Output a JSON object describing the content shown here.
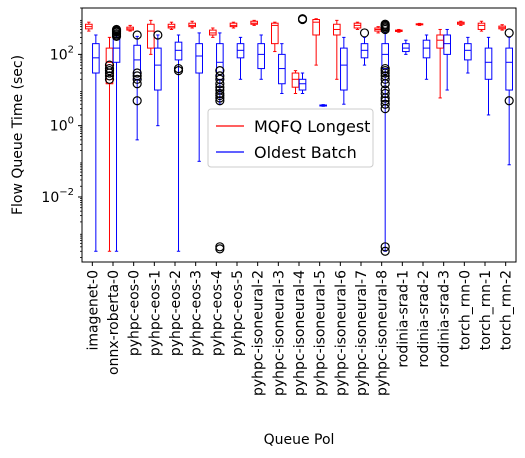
{
  "chart_data": {
    "type": "boxplot",
    "title": "",
    "xlabel": "Queue Pol",
    "ylabel": "Flow Queue Time (sec)",
    "yscale": "log",
    "ylim": [
      0.00015,
      2000
    ],
    "yticks": [
      {
        "value": 0.01,
        "base": "10",
        "exp": "−2"
      },
      {
        "value": 1,
        "base": "10",
        "exp": "0"
      },
      {
        "value": 100,
        "base": "10",
        "exp": "2"
      }
    ],
    "grid": false,
    "legend_position": "center",
    "categories": [
      "imagenet-0",
      "onnx-roberta-0",
      "pyhpc-eos-0",
      "pyhpc-eos-1",
      "pyhpc-eos-2",
      "pyhpc-eos-3",
      "pyhpc-eos-4",
      "pyhpc-eos-5",
      "pyhpc-isoneural-2",
      "pyhpc-isoneural-3",
      "pyhpc-isoneural-4",
      "pyhpc-isoneural-5",
      "pyhpc-isoneural-6",
      "pyhpc-isoneural-7",
      "pyhpc-isoneural-8",
      "rodinia-srad-1",
      "rodinia-srad-2",
      "rodinia-srad-3",
      "torch_rnn-0",
      "torch_rnn-1",
      "torch_rnn-2"
    ],
    "series": [
      {
        "name": "MQFQ Longest",
        "color": "#ff0000",
        "boxes": [
          {
            "whislo": 450,
            "q1": 520,
            "med": 600,
            "q3": 700,
            "whishi": 800,
            "fliers": []
          },
          {
            "whislo": 0.0003,
            "q1": 15,
            "med": 60,
            "q3": 150,
            "whishi": 300,
            "fliers": [
              20,
              25,
              30,
              35,
              40,
              50
            ]
          },
          {
            "whislo": 450,
            "q1": 480,
            "med": 520,
            "q3": 580,
            "whishi": 650,
            "fliers": []
          },
          {
            "whislo": 100,
            "q1": 150,
            "med": 450,
            "q3": 700,
            "whishi": 900,
            "fliers": []
          },
          {
            "whislo": 500,
            "q1": 550,
            "med": 600,
            "q3": 700,
            "whishi": 800,
            "fliers": []
          },
          {
            "whislo": 550,
            "q1": 600,
            "med": 650,
            "q3": 750,
            "whishi": 850,
            "fliers": []
          },
          {
            "whislo": 300,
            "q1": 350,
            "med": 400,
            "q3": 480,
            "whishi": 550,
            "fliers": []
          },
          {
            "whislo": 550,
            "q1": 600,
            "med": 650,
            "q3": 750,
            "whishi": 800,
            "fliers": []
          },
          {
            "whislo": 650,
            "q1": 700,
            "med": 750,
            "q3": 850,
            "whishi": 900,
            "fliers": []
          },
          {
            "whislo": 120,
            "q1": 200,
            "med": 650,
            "q3": 750,
            "whishi": 800,
            "fliers": []
          },
          {
            "whislo": 8,
            "q1": 12,
            "med": 20,
            "q3": 30,
            "whishi": 35,
            "fliers": []
          },
          {
            "whislo": 50,
            "q1": 350,
            "med": 800,
            "q3": 950,
            "whishi": 1000,
            "fliers": []
          },
          {
            "whislo": 20,
            "q1": 350,
            "med": 500,
            "q3": 700,
            "whishi": 900,
            "fliers": []
          },
          {
            "whislo": 500,
            "q1": 550,
            "med": 650,
            "q3": 750,
            "whishi": 800,
            "fliers": []
          },
          {
            "whislo": 400,
            "q1": 450,
            "med": 500,
            "q3": 550,
            "whishi": 600,
            "fliers": []
          },
          {
            "whislo": 420,
            "q1": 440,
            "med": 460,
            "q3": 480,
            "whishi": 500,
            "fliers": []
          },
          {
            "whislo": 650,
            "q1": 680,
            "med": 700,
            "q3": 720,
            "whishi": 740,
            "fliers": []
          },
          {
            "whislo": 6,
            "q1": 150,
            "med": 250,
            "q3": 350,
            "whishi": 500,
            "fliers": []
          },
          {
            "whislo": 650,
            "q1": 700,
            "med": 750,
            "q3": 800,
            "whishi": 850,
            "fliers": []
          },
          {
            "whislo": 450,
            "q1": 500,
            "med": 650,
            "q3": 750,
            "whishi": 850,
            "fliers": []
          },
          {
            "whislo": 480,
            "q1": 520,
            "med": 560,
            "q3": 620,
            "whishi": 680,
            "fliers": []
          }
        ]
      },
      {
        "name": "Oldest Batch",
        "color": "#0000ff",
        "boxes": [
          {
            "whislo": 0.0003,
            "q1": 30,
            "med": 80,
            "q3": 200,
            "whishi": 350,
            "fliers": []
          },
          {
            "whislo": 0.0003,
            "q1": 60,
            "med": 150,
            "q3": 300,
            "whishi": 400,
            "fliers": [
              420,
              450,
              480,
              500,
              350,
              380,
              320
            ]
          },
          {
            "whislo": 0.4,
            "q1": 20,
            "med": 70,
            "q3": 180,
            "whishi": 320,
            "fliers": [
              5,
              15,
              20,
              25,
              30,
              350
            ]
          },
          {
            "whislo": 1,
            "q1": 10,
            "med": 50,
            "q3": 150,
            "whishi": 350,
            "fliers": [
              350
            ]
          },
          {
            "whislo": 0.0003,
            "q1": 70,
            "med": 130,
            "q3": 220,
            "whishi": 350,
            "fliers": [
              35,
              40
            ]
          },
          {
            "whislo": 0.1,
            "q1": 30,
            "med": 90,
            "q3": 200,
            "whishi": 400,
            "fliers": []
          },
          {
            "whislo": 4,
            "q1": 20,
            "med": 60,
            "q3": 200,
            "whishi": 400,
            "fliers": [
              0.00035,
              0.0004,
              5,
              6,
              7,
              8,
              10,
              12,
              15,
              20,
              25,
              35
            ]
          },
          {
            "whislo": 20,
            "q1": 80,
            "med": 130,
            "q3": 200,
            "whishi": 300,
            "fliers": []
          },
          {
            "whislo": 20,
            "q1": 40,
            "med": 100,
            "q3": 200,
            "whishi": 350,
            "fliers": []
          },
          {
            "whislo": 8,
            "q1": 15,
            "med": 40,
            "q3": 100,
            "whishi": 200,
            "fliers": []
          },
          {
            "whislo": 8,
            "q1": 10,
            "med": 15,
            "q3": 20,
            "whishi": 30,
            "fliers": [
              1000,
              950
            ]
          },
          {
            "whislo": 3.5,
            "q1": 3.6,
            "med": 3.7,
            "q3": 3.8,
            "whishi": 3.9,
            "fliers": []
          },
          {
            "whislo": 4,
            "q1": 10,
            "med": 50,
            "q3": 150,
            "whishi": 300,
            "fliers": []
          },
          {
            "whislo": 50,
            "q1": 80,
            "med": 130,
            "q3": 200,
            "whishi": 300,
            "fliers": [
              400
            ]
          },
          {
            "whislo": 0.0003,
            "q1": 40,
            "med": 100,
            "q3": 200,
            "whishi": 400,
            "fliers": [
              0.0003,
              0.0004,
              3,
              4,
              5,
              6,
              8,
              10,
              15,
              20,
              25,
              30,
              35,
              40,
              500,
              550,
              600,
              650,
              700
            ]
          },
          {
            "whislo": 100,
            "q1": 120,
            "med": 150,
            "q3": 200,
            "whishi": 250,
            "fliers": []
          },
          {
            "whislo": 20,
            "q1": 80,
            "med": 150,
            "q3": 250,
            "whishi": 350,
            "fliers": []
          },
          {
            "whislo": 10,
            "q1": 100,
            "med": 200,
            "q3": 350,
            "whishi": 500,
            "fliers": []
          },
          {
            "whislo": 30,
            "q1": 70,
            "med": 130,
            "q3": 200,
            "whishi": 300,
            "fliers": []
          },
          {
            "whislo": 2,
            "q1": 20,
            "med": 60,
            "q3": 150,
            "whishi": 300,
            "fliers": []
          },
          {
            "whislo": 0.08,
            "q1": 10,
            "med": 60,
            "q3": 150,
            "whishi": 300,
            "fliers": [
              5,
              400
            ]
          }
        ]
      }
    ]
  }
}
